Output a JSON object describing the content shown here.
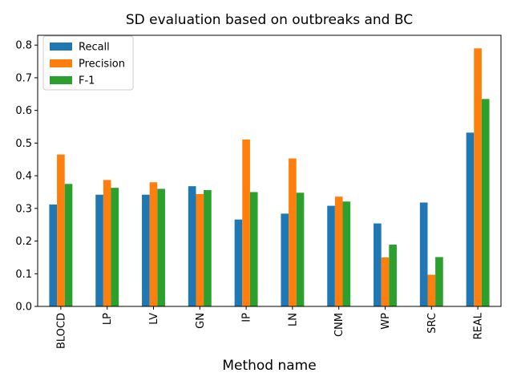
{
  "chart_data": {
    "type": "bar",
    "title": "SD evaluation based on outbreaks and BC",
    "xlabel": "Method name",
    "ylabel": "",
    "categories": [
      "BLOCD",
      "LP",
      "LV",
      "GN",
      "IP",
      "LN",
      "CNM",
      "WP",
      "SRC",
      "REAL"
    ],
    "series": [
      {
        "name": "Recall",
        "color": "#1f77b4",
        "values": [
          0.312,
          0.342,
          0.342,
          0.368,
          0.266,
          0.284,
          0.308,
          0.254,
          0.318,
          0.532
        ]
      },
      {
        "name": "Precision",
        "color": "#ff7f0e",
        "values": [
          0.465,
          0.387,
          0.38,
          0.344,
          0.511,
          0.453,
          0.336,
          0.15,
          0.097,
          0.79
        ]
      },
      {
        "name": "F-1",
        "color": "#2ca02c",
        "values": [
          0.375,
          0.363,
          0.36,
          0.356,
          0.35,
          0.348,
          0.321,
          0.189,
          0.151,
          0.635
        ]
      }
    ],
    "ylim": [
      0,
      0.83
    ],
    "yticks": [
      0.0,
      0.1,
      0.2,
      0.3,
      0.4,
      0.5,
      0.6,
      0.7,
      0.8
    ],
    "ytick_labels": [
      "0.0",
      "0.1",
      "0.2",
      "0.3",
      "0.4",
      "0.5",
      "0.6",
      "0.7",
      "0.8"
    ],
    "grid": false,
    "legend_position": "top-left"
  }
}
